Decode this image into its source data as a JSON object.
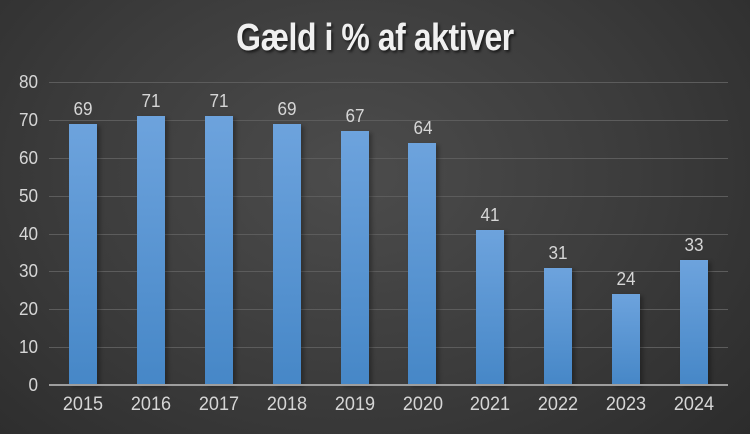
{
  "title": "Gæld i % af aktiver",
  "chart_data": {
    "type": "bar",
    "title": "Gæld i % af aktiver",
    "categories": [
      "2015",
      "2016",
      "2017",
      "2018",
      "2019",
      "2020",
      "2021",
      "2022",
      "2023",
      "2024"
    ],
    "values": [
      69,
      71,
      71,
      69,
      67,
      64,
      41,
      31,
      24,
      33
    ],
    "xlabel": "",
    "ylabel": "",
    "ylim": [
      0,
      80
    ],
    "ytick_step": 10,
    "data_labels_shown": true,
    "grid": true,
    "legend": false,
    "colors": {
      "bar_top": "#6da3dd",
      "bar_bottom": "#4687c7",
      "gridline": "#5c5c5c",
      "axis_line": "#9e9e9e",
      "label_text": "#d6d6d6",
      "title_text": "#f0f0f0",
      "bg_center": "#4c4c4c",
      "bg_edge": "#272727"
    }
  }
}
